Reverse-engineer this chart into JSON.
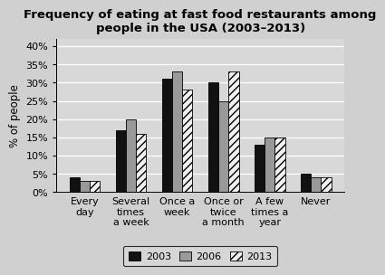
{
  "title": "Frequency of eating at fast food restaurants among\npeople in the USA (2003–2013)",
  "categories": [
    "Every\nday",
    "Several\ntimes\na week",
    "Once a\nweek",
    "Once or\ntwice\na month",
    "A few\ntimes a\nyear",
    "Never"
  ],
  "series": {
    "2003": [
      4,
      17,
      31,
      30,
      13,
      5
    ],
    "2006": [
      3,
      20,
      33,
      25,
      15,
      4
    ],
    "2013": [
      3,
      16,
      28,
      33,
      15,
      4
    ]
  },
  "colors": {
    "2003": "#111111",
    "2006": "#999999",
    "2013": "#f0f0f0"
  },
  "hatch": {
    "2003": "",
    "2006": "",
    "2013": "////"
  },
  "ylabel": "% of people",
  "yticks": [
    0,
    5,
    10,
    15,
    20,
    25,
    30,
    35,
    40
  ],
  "ylim": [
    0,
    42
  ],
  "plot_bg_color": "#d8d8d8",
  "fig_bg_color": "#d0d0d0",
  "legend_facecolor": "#d8d8d8",
  "bar_width": 0.22,
  "title_fontsize": 9.5,
  "axis_fontsize": 8.5,
  "tick_fontsize": 8,
  "legend_fontsize": 8
}
